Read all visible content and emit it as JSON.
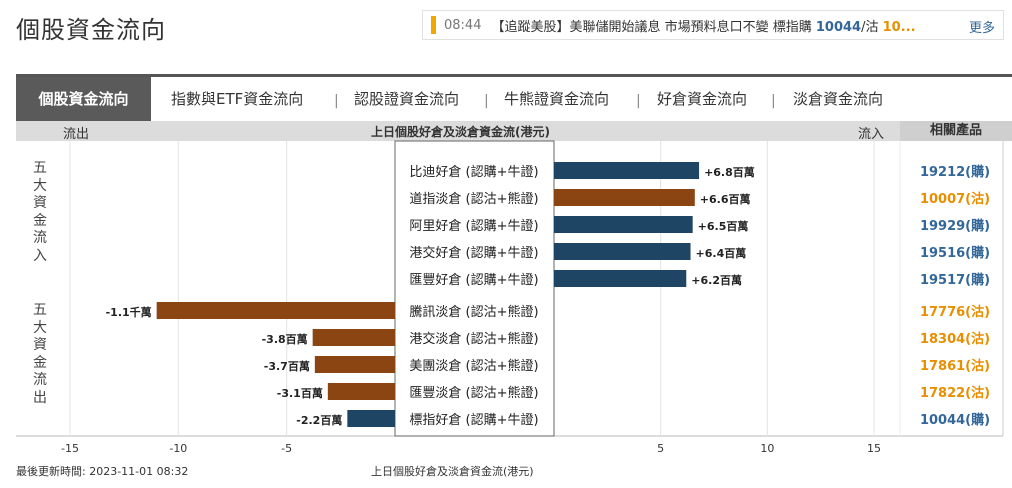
{
  "page": {
    "title": "個股資金流向",
    "last_updated_label": "最後更新時間: 2023-11-01 08:32",
    "footer_caption": "上日個股好倉及淡倉資金流(港元)"
  },
  "news": {
    "time": "08:44",
    "text_prefix": "【追蹤美股】美聯儲開始議息 市場預料息口不變 標指購 ",
    "value1": "10044",
    "sep": "/沽 ",
    "value2": "10...",
    "more_label": "更多",
    "accent_color": "#f0a800"
  },
  "tabs": [
    {
      "label": "個股資金流向",
      "active": true
    },
    {
      "label": "指數與ETF資金流向",
      "active": false
    },
    {
      "label": "認股證資金流向",
      "active": false
    },
    {
      "label": "牛熊證資金流向",
      "active": false
    },
    {
      "label": "好倉資金流向",
      "active": false
    },
    {
      "label": "淡倉資金流向",
      "active": false
    }
  ],
  "header": {
    "outflow": "流出",
    "center": "上日個股好倉及淡倉資金流(港元)",
    "inflow": "流入",
    "related": "相關產品"
  },
  "groups": {
    "inflow_label": "五大資金流入",
    "outflow_label": "五大資金流出"
  },
  "colors": {
    "bull": "#1f4564",
    "bear": "#8b4513",
    "call_text": "#336699",
    "put_text": "#e88f00"
  },
  "chart_data": {
    "type": "bar",
    "orientation": "horizontal",
    "xlim": [
      -15,
      15
    ],
    "xticks": [
      -15,
      -10,
      -5,
      5,
      10,
      15
    ],
    "xlabel": "上日個股好倉及淡倉資金流(港元)",
    "unit": "百萬港元",
    "rows": [
      {
        "name": "比迪好倉 (認購+牛證)",
        "value": 6.8,
        "label": "+6.8百萬",
        "side": "bull",
        "product": "19212(購)"
      },
      {
        "name": "道指淡倉 (認沽+熊證)",
        "value": 6.6,
        "label": "+6.6百萬",
        "side": "bear",
        "product": "10007(沽)"
      },
      {
        "name": "阿里好倉 (認購+牛證)",
        "value": 6.5,
        "label": "+6.5百萬",
        "side": "bull",
        "product": "19929(購)"
      },
      {
        "name": "港交好倉 (認購+牛證)",
        "value": 6.4,
        "label": "+6.4百萬",
        "side": "bull",
        "product": "19516(購)"
      },
      {
        "name": "匯豐好倉 (認購+牛證)",
        "value": 6.2,
        "label": "+6.2百萬",
        "side": "bull",
        "product": "19517(購)"
      },
      {
        "name": "騰訊淡倉 (認沽+熊證)",
        "value": -11.0,
        "label": "-1.1千萬",
        "side": "bear",
        "product": "17776(沽)"
      },
      {
        "name": "港交淡倉 (認沽+熊證)",
        "value": -3.8,
        "label": "-3.8百萬",
        "side": "bear",
        "product": "18304(沽)"
      },
      {
        "name": "美團淡倉 (認沽+熊證)",
        "value": -3.7,
        "label": "-3.7百萬",
        "side": "bear",
        "product": "17861(沽)"
      },
      {
        "name": "匯豐淡倉 (認沽+熊證)",
        "value": -3.1,
        "label": "-3.1百萬",
        "side": "bear",
        "product": "17822(沽)"
      },
      {
        "name": "標指好倉 (認購+牛證)",
        "value": -2.2,
        "label": "-2.2百萬",
        "side": "bull",
        "product": "10044(購)"
      }
    ]
  }
}
